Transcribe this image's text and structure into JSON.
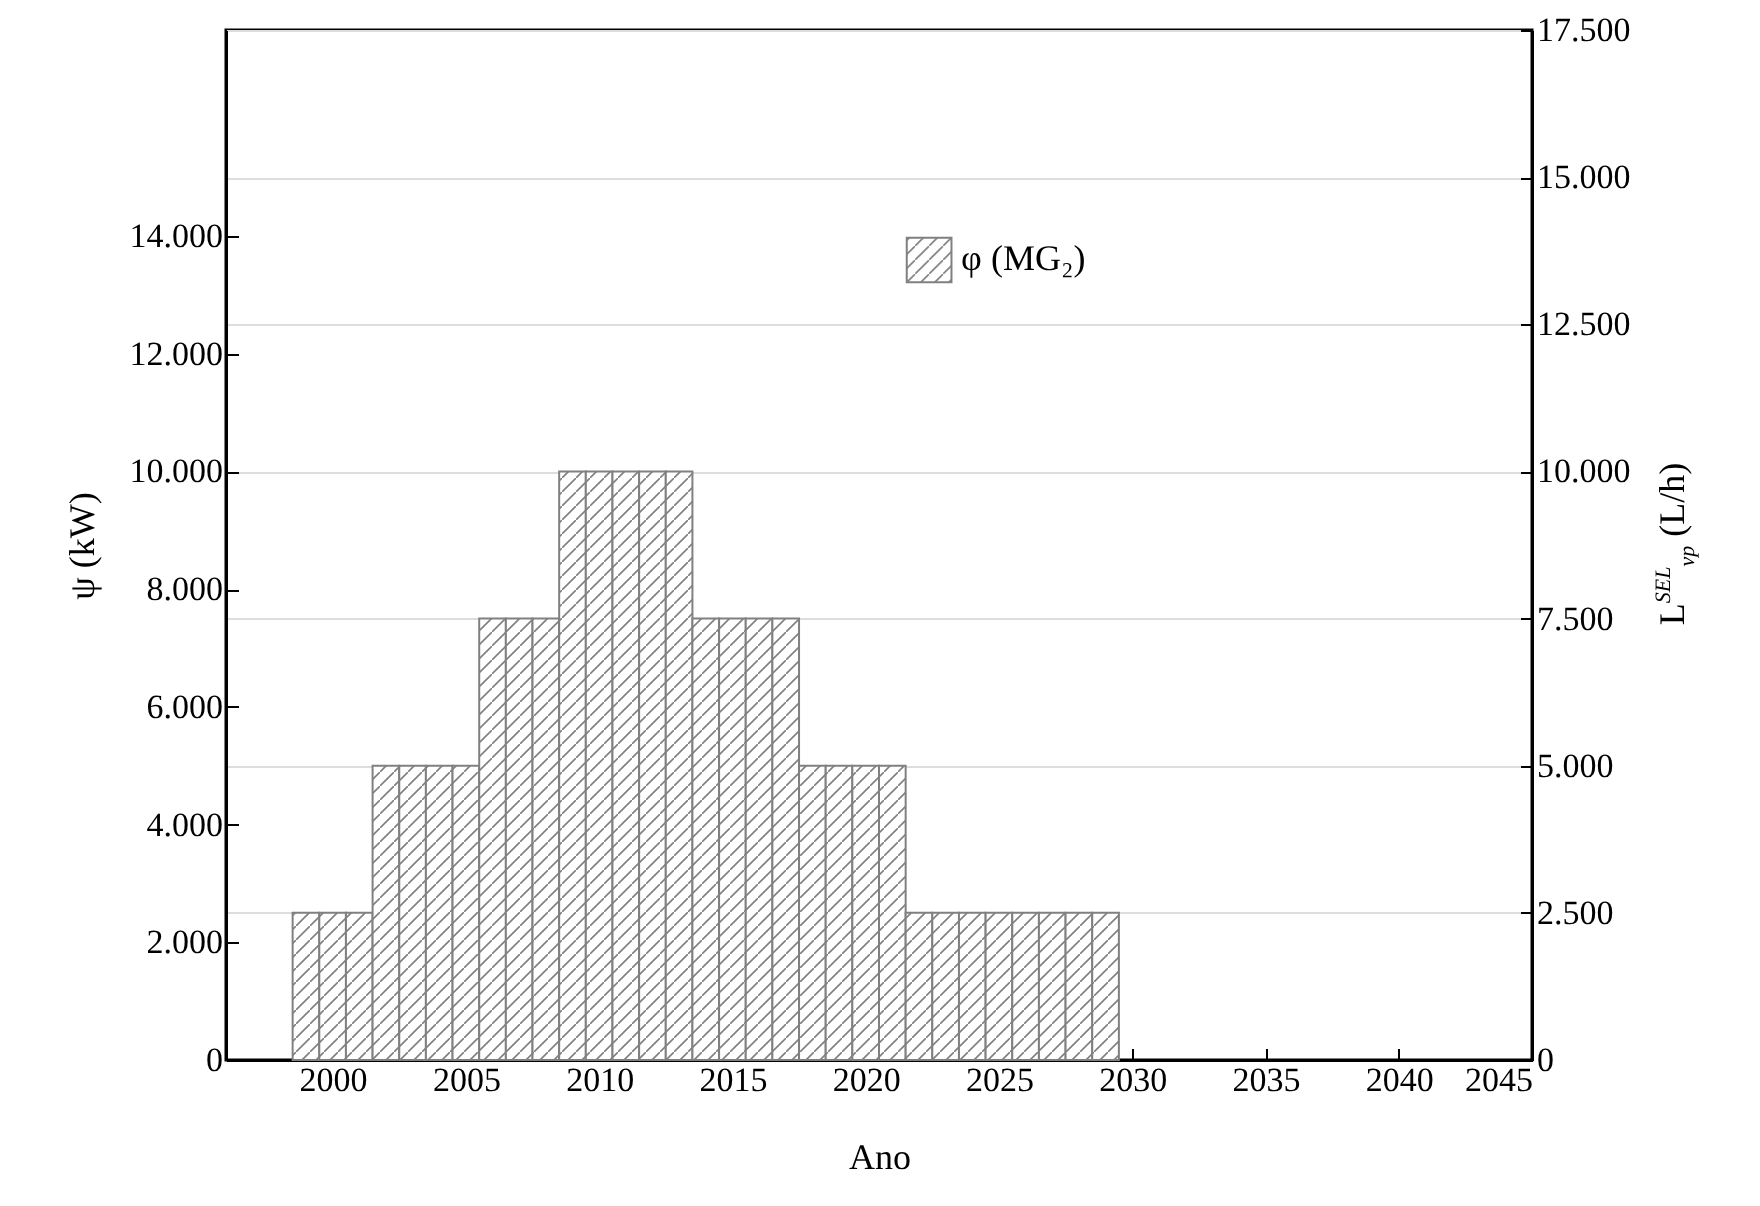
{
  "chart_data": {
    "type": "histogram",
    "xlabel": "Ano",
    "ylabel": "ψ (kW)",
    "y2label": "L$^{SEL}$$_{vp}$ (L/h)",
    "bins": [
      1998.5,
      1999.5,
      2000.5,
      2001.5,
      2002.5,
      2003.5,
      2004.5,
      2005.5,
      2006.5,
      2007.5,
      2008.5,
      2009.5,
      2010.5,
      2011.5,
      2012.5,
      2013.5,
      2014.5,
      2015.5,
      2016.5,
      2017.5,
      2018.5,
      2019.5,
      2020.5,
      2021.5,
      2022.5,
      2023.5,
      2024.5,
      2025.5,
      2026.5,
      2027.5,
      2028.5,
      2029.5
    ],
    "series": [
      {
        "name": "φ (MG₂)",
        "color": "#808080",
        "axis": "y2",
        "values": [
          2500,
          2500,
          2500,
          5000,
          5000,
          5000,
          5000,
          7500,
          7500,
          7500,
          10000,
          10000,
          10000,
          10000,
          10000,
          7500,
          7500,
          7500,
          7500,
          5000,
          5000,
          5000,
          5000,
          2500,
          2500,
          2500,
          2500,
          2500,
          2500,
          2500,
          2500
        ]
      }
    ],
    "xlim": [
      1996,
      2045
    ],
    "xticks": [
      2000,
      2005,
      2010,
      2015,
      2020,
      2025,
      2030,
      2035,
      2040,
      2045
    ],
    "ylim": [
      0,
      17500
    ],
    "yticks": [
      0,
      {
        "value": 2000,
        "label": "2.000"
      },
      {
        "value": 4000,
        "label": "4.000"
      },
      {
        "value": 6000,
        "label": "6.000"
      },
      {
        "value": 8000,
        "label": "8.000"
      },
      {
        "value": 10000,
        "label": "10.000"
      },
      {
        "value": 12000,
        "label": "12.000"
      },
      {
        "value": 14000,
        "label": "14.000"
      }
    ],
    "y2lim": [
      0,
      17500
    ],
    "y2ticks": [
      0,
      {
        "value": 2500,
        "label": "2.500"
      },
      {
        "value": 5000,
        "label": "5.000"
      },
      {
        "value": 7500,
        "label": "7.500"
      },
      {
        "value": 10000,
        "label": "10.000"
      },
      {
        "value": 12500,
        "label": "12.500"
      },
      {
        "value": 15000,
        "label": "15.000"
      },
      {
        "value": 17500,
        "label": "17.500"
      }
    ],
    "grid": true,
    "legend": "top"
  }
}
